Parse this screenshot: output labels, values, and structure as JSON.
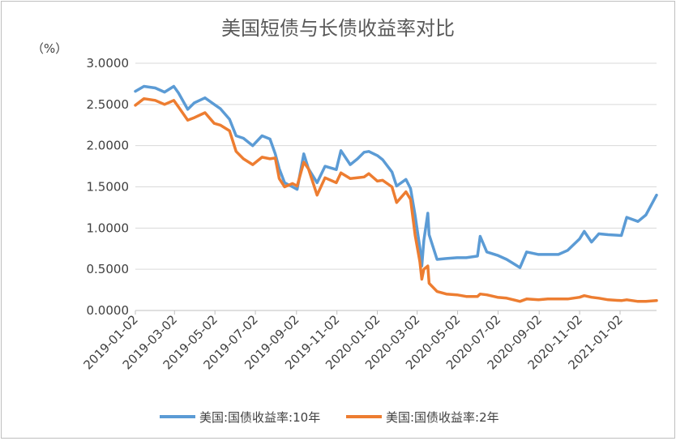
{
  "chart_data": {
    "type": "line",
    "title": "美国短债与长债收益率对比",
    "yunit_label": "（%）",
    "ylim": [
      0,
      3
    ],
    "yticks": [
      "0.0000",
      "0.5000",
      "1.0000",
      "1.5000",
      "2.0000",
      "2.5000",
      "3.0000"
    ],
    "ytick_values": [
      0,
      0.5,
      1,
      1.5,
      2,
      2.5,
      3
    ],
    "xtick_labels": [
      "2019-01-02",
      "2019-03-02",
      "2019-05-02",
      "2019-07-02",
      "2019-09-02",
      "2019-11-02",
      "2020-01-02",
      "2020-03-02",
      "2020-05-02",
      "2020-07-02",
      "2020-09-02",
      "2020-11-02",
      "2021-01-02"
    ],
    "xlim": [
      "2019-01-02",
      "2021-02-26"
    ],
    "grid": "horizontal",
    "legend_position": "bottom",
    "series": [
      {
        "name": "美国:国债收益率:10年",
        "color": "#5b9bd5",
        "x": [
          "2019-01-02",
          "2019-01-15",
          "2019-02-01",
          "2019-02-15",
          "2019-03-01",
          "2019-03-08",
          "2019-03-22",
          "2019-04-01",
          "2019-04-17",
          "2019-05-01",
          "2019-05-10",
          "2019-05-24",
          "2019-06-03",
          "2019-06-14",
          "2019-06-28",
          "2019-07-12",
          "2019-07-24",
          "2019-08-01",
          "2019-08-07",
          "2019-08-15",
          "2019-08-27",
          "2019-09-03",
          "2019-09-13",
          "2019-09-20",
          "2019-10-03",
          "2019-10-15",
          "2019-11-01",
          "2019-11-08",
          "2019-11-22",
          "2019-12-03",
          "2019-12-13",
          "2019-12-20",
          "2020-01-02",
          "2020-01-10",
          "2020-01-24",
          "2020-01-31",
          "2020-02-14",
          "2020-02-21",
          "2020-02-28",
          "2020-03-06",
          "2020-03-09",
          "2020-03-12",
          "2020-03-18",
          "2020-03-20",
          "2020-04-01",
          "2020-04-15",
          "2020-05-01",
          "2020-05-15",
          "2020-06-01",
          "2020-06-05",
          "2020-06-15",
          "2020-07-01",
          "2020-07-15",
          "2020-08-04",
          "2020-08-14",
          "2020-09-01",
          "2020-09-15",
          "2020-10-01",
          "2020-10-15",
          "2020-11-02",
          "2020-11-09",
          "2020-11-20",
          "2020-12-01",
          "2020-12-15",
          "2021-01-04",
          "2021-01-12",
          "2021-01-29",
          "2021-02-10",
          "2021-02-26"
        ],
        "values": [
          2.66,
          2.72,
          2.7,
          2.65,
          2.72,
          2.64,
          2.44,
          2.52,
          2.58,
          2.5,
          2.45,
          2.32,
          2.12,
          2.09,
          2.0,
          2.12,
          2.08,
          1.9,
          1.72,
          1.55,
          1.5,
          1.47,
          1.9,
          1.72,
          1.55,
          1.75,
          1.71,
          1.94,
          1.77,
          1.84,
          1.92,
          1.93,
          1.88,
          1.83,
          1.68,
          1.51,
          1.59,
          1.48,
          1.15,
          0.76,
          0.54,
          0.85,
          1.18,
          0.92,
          0.62,
          0.63,
          0.64,
          0.64,
          0.66,
          0.9,
          0.71,
          0.67,
          0.62,
          0.52,
          0.71,
          0.68,
          0.68,
          0.68,
          0.73,
          0.87,
          0.96,
          0.83,
          0.93,
          0.92,
          0.91,
          1.13,
          1.08,
          1.16,
          1.4
        ]
      },
      {
        "name": "美国:国债收益率:2年",
        "color": "#ed7d31",
        "x": [
          "2019-01-02",
          "2019-01-15",
          "2019-02-01",
          "2019-02-15",
          "2019-03-01",
          "2019-03-08",
          "2019-03-22",
          "2019-04-01",
          "2019-04-17",
          "2019-05-01",
          "2019-05-10",
          "2019-05-24",
          "2019-06-03",
          "2019-06-14",
          "2019-06-28",
          "2019-07-12",
          "2019-07-24",
          "2019-08-01",
          "2019-08-07",
          "2019-08-15",
          "2019-08-27",
          "2019-09-03",
          "2019-09-13",
          "2019-09-20",
          "2019-10-03",
          "2019-10-15",
          "2019-11-01",
          "2019-11-08",
          "2019-11-22",
          "2019-12-03",
          "2019-12-13",
          "2019-12-20",
          "2020-01-02",
          "2020-01-10",
          "2020-01-24",
          "2020-01-31",
          "2020-02-14",
          "2020-02-21",
          "2020-02-28",
          "2020-03-06",
          "2020-03-09",
          "2020-03-12",
          "2020-03-18",
          "2020-03-20",
          "2020-04-01",
          "2020-04-15",
          "2020-05-01",
          "2020-05-15",
          "2020-06-01",
          "2020-06-05",
          "2020-06-15",
          "2020-07-01",
          "2020-07-15",
          "2020-08-04",
          "2020-08-14",
          "2020-09-01",
          "2020-09-15",
          "2020-10-01",
          "2020-10-15",
          "2020-11-02",
          "2020-11-09",
          "2020-11-20",
          "2020-12-01",
          "2020-12-15",
          "2021-01-04",
          "2021-01-12",
          "2021-01-29",
          "2021-02-10",
          "2021-02-26"
        ],
        "values": [
          2.49,
          2.57,
          2.55,
          2.5,
          2.55,
          2.47,
          2.31,
          2.34,
          2.4,
          2.27,
          2.25,
          2.18,
          1.93,
          1.84,
          1.77,
          1.86,
          1.84,
          1.85,
          1.6,
          1.5,
          1.54,
          1.51,
          1.8,
          1.72,
          1.4,
          1.61,
          1.55,
          1.67,
          1.6,
          1.61,
          1.62,
          1.66,
          1.57,
          1.58,
          1.5,
          1.31,
          1.44,
          1.35,
          0.91,
          0.59,
          0.38,
          0.5,
          0.54,
          0.33,
          0.23,
          0.2,
          0.19,
          0.17,
          0.17,
          0.2,
          0.19,
          0.16,
          0.15,
          0.11,
          0.14,
          0.13,
          0.14,
          0.14,
          0.14,
          0.16,
          0.18,
          0.16,
          0.15,
          0.13,
          0.12,
          0.13,
          0.11,
          0.11,
          0.12
        ]
      }
    ]
  }
}
